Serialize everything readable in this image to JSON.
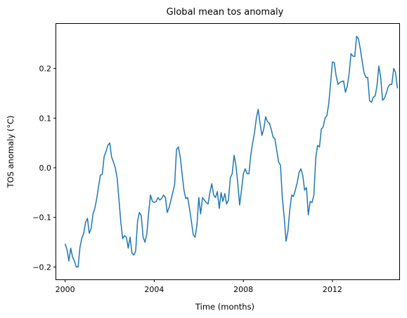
{
  "chart_data": {
    "type": "line",
    "title": "Global mean tos anomaly",
    "xlabel": "Time (months)",
    "ylabel": "TOS anomaly (°C)",
    "xlim": [
      1999.6,
      2015.0
    ],
    "ylim": [
      -0.225,
      0.29
    ],
    "x_ticks": [
      2000,
      2004,
      2008,
      2012
    ],
    "x_tick_labels": [
      "2000",
      "2004",
      "2008",
      "2012"
    ],
    "y_ticks": [
      -0.2,
      -0.1,
      0.0,
      0.1,
      0.2
    ],
    "y_tick_labels": [
      "−0.2",
      "−0.1",
      "0.0",
      "0.1",
      "0.2"
    ],
    "grid": false,
    "legend": "none",
    "line_color": "#1f77b4",
    "series": [
      {
        "x": [
          2000.0,
          2000.083,
          2000.167,
          2000.25,
          2000.333,
          2000.417,
          2000.5,
          2000.583,
          2000.667,
          2000.75,
          2000.833,
          2000.917,
          2001.0,
          2001.083,
          2001.167,
          2001.25,
          2001.333,
          2001.417,
          2001.5,
          2001.583,
          2001.667,
          2001.75,
          2001.833,
          2001.917,
          2002.0,
          2002.083,
          2002.167,
          2002.25,
          2002.333,
          2002.417,
          2002.5,
          2002.583,
          2002.667,
          2002.75,
          2002.833,
          2002.917,
          2003.0,
          2003.083,
          2003.167,
          2003.25,
          2003.333,
          2003.417,
          2003.5,
          2003.583,
          2003.667,
          2003.75,
          2003.833,
          2003.917,
          2004.0,
          2004.083,
          2004.167,
          2004.25,
          2004.333,
          2004.417,
          2004.5,
          2004.583,
          2004.667,
          2004.75,
          2004.833,
          2004.917,
          2005.0,
          2005.083,
          2005.167,
          2005.25,
          2005.333,
          2005.417,
          2005.5,
          2005.583,
          2005.667,
          2005.75,
          2005.833,
          2005.917,
          2006.0,
          2006.083,
          2006.167,
          2006.25,
          2006.333,
          2006.417,
          2006.5,
          2006.583,
          2006.667,
          2006.75,
          2006.833,
          2006.917,
          2007.0,
          2007.083,
          2007.167,
          2007.25,
          2007.333,
          2007.417,
          2007.5,
          2007.583,
          2007.667,
          2007.75,
          2007.833,
          2007.917,
          2008.0,
          2008.083,
          2008.167,
          2008.25,
          2008.333,
          2008.417,
          2008.5,
          2008.583,
          2008.667,
          2008.75,
          2008.833,
          2008.917,
          2009.0,
          2009.083,
          2009.167,
          2009.25,
          2009.333,
          2009.417,
          2009.5,
          2009.583,
          2009.667,
          2009.75,
          2009.833,
          2009.917,
          2010.0,
          2010.083,
          2010.167,
          2010.25,
          2010.333,
          2010.417,
          2010.5,
          2010.583,
          2010.667,
          2010.75,
          2010.833,
          2010.917,
          2011.0,
          2011.083,
          2011.167,
          2011.25,
          2011.333,
          2011.417,
          2011.5,
          2011.583,
          2011.667,
          2011.75,
          2011.833,
          2011.917,
          2012.0,
          2012.083,
          2012.167,
          2012.25,
          2012.333,
          2012.417,
          2012.5,
          2012.583,
          2012.667,
          2012.75,
          2012.833,
          2012.917,
          2013.0,
          2013.083,
          2013.167,
          2013.25,
          2013.333,
          2013.417,
          2013.5,
          2013.583,
          2013.667,
          2013.75,
          2013.833,
          2013.917,
          2014.0,
          2014.083,
          2014.167,
          2014.25,
          2014.333,
          2014.417,
          2014.5,
          2014.583,
          2014.667,
          2014.75,
          2014.833,
          2014.917
        ],
        "y": [
          -0.153,
          -0.165,
          -0.188,
          -0.162,
          -0.18,
          -0.188,
          -0.2,
          -0.2,
          -0.16,
          -0.142,
          -0.132,
          -0.11,
          -0.102,
          -0.132,
          -0.122,
          -0.093,
          -0.082,
          -0.062,
          -0.038,
          -0.015,
          -0.013,
          0.022,
          0.033,
          0.045,
          0.05,
          0.022,
          0.012,
          0.0,
          -0.02,
          -0.065,
          -0.11,
          -0.143,
          -0.137,
          -0.14,
          -0.162,
          -0.14,
          -0.172,
          -0.176,
          -0.168,
          -0.108,
          -0.09,
          -0.097,
          -0.14,
          -0.15,
          -0.133,
          -0.09,
          -0.055,
          -0.068,
          -0.07,
          -0.068,
          -0.06,
          -0.065,
          -0.062,
          -0.055,
          -0.06,
          -0.09,
          -0.08,
          -0.065,
          -0.05,
          -0.033,
          0.037,
          0.042,
          0.022,
          -0.012,
          -0.045,
          -0.062,
          -0.06,
          -0.082,
          -0.108,
          -0.135,
          -0.14,
          -0.115,
          -0.06,
          -0.093,
          -0.06,
          -0.065,
          -0.07,
          -0.073,
          -0.05,
          -0.032,
          -0.055,
          -0.06,
          -0.048,
          -0.082,
          -0.05,
          -0.068,
          -0.052,
          -0.073,
          -0.065,
          -0.02,
          -0.012,
          0.025,
          0.005,
          -0.032,
          -0.075,
          -0.045,
          -0.012,
          -0.002,
          -0.012,
          -0.012,
          0.025,
          0.05,
          0.07,
          0.1,
          0.118,
          0.09,
          0.065,
          0.078,
          0.103,
          0.093,
          0.09,
          0.078,
          0.062,
          0.058,
          0.035,
          0.012,
          0.005,
          -0.06,
          -0.1,
          -0.148,
          -0.128,
          -0.085,
          -0.055,
          -0.058,
          -0.045,
          -0.03,
          -0.01,
          -0.002,
          -0.015,
          -0.045,
          -0.04,
          -0.095,
          -0.068,
          -0.07,
          -0.055,
          0.02,
          0.045,
          0.042,
          0.078,
          0.082,
          0.1,
          0.105,
          0.128,
          0.17,
          0.213,
          0.212,
          0.185,
          0.168,
          0.172,
          0.174,
          0.175,
          0.152,
          0.165,
          0.19,
          0.23,
          0.225,
          0.224,
          0.265,
          0.26,
          0.24,
          0.215,
          0.192,
          0.182,
          0.182,
          0.135,
          0.132,
          0.142,
          0.145,
          0.165,
          0.205,
          0.182,
          0.136,
          0.14,
          0.15,
          0.163,
          0.168,
          0.168,
          0.2,
          0.192,
          0.16
        ]
      }
    ]
  }
}
